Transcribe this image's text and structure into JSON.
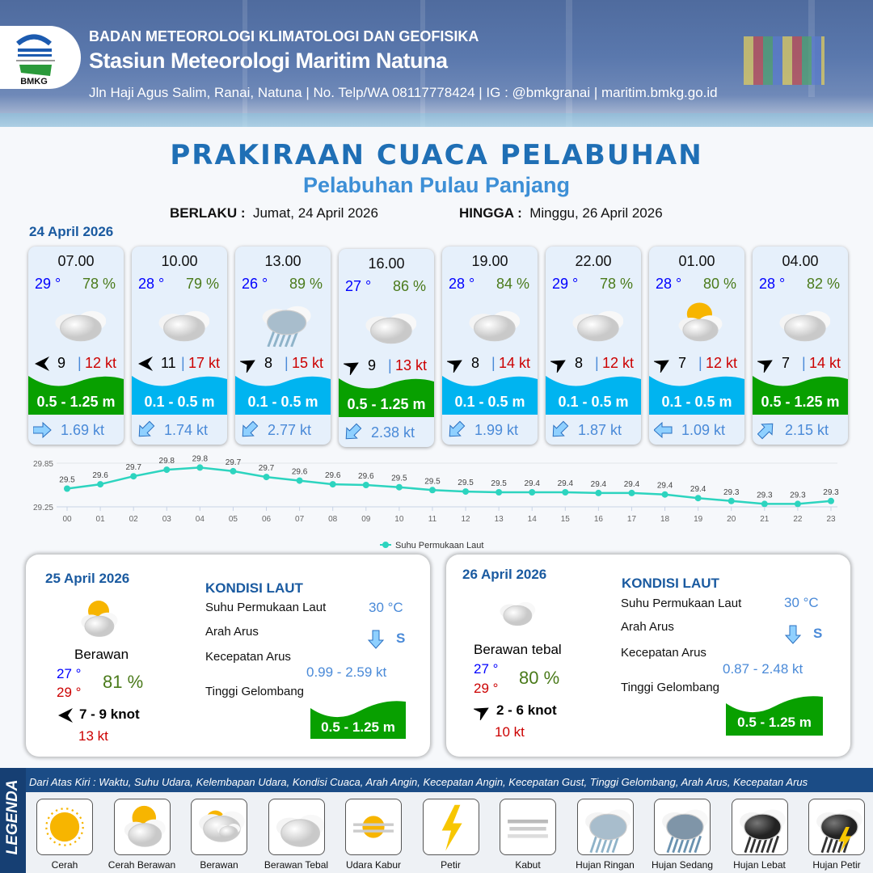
{
  "header": {
    "org": "BADAN METEOROLOGI KLIMATOLOGI DAN GEOFISIKA",
    "station": "Stasiun Meteorologi Maritim Natuna",
    "contact": "Jln Haji Agus Salim, Ranai, Natuna  | No. Telp/WA 08117778424 | IG : @bmkgranai | maritim.bmkg.go.id",
    "logo_text": "BMKG"
  },
  "title": "PRAKIRAAN CUACA PELABUHAN",
  "subtitle": "Pelabuhan Pulau Panjang",
  "validity": {
    "from_label": "BERLAKU :",
    "from": "Jumat, 24 April 2026",
    "to_label": "HINGGA :",
    "to": "Minggu, 26 April 2026"
  },
  "day1": {
    "date": "24 April 2026",
    "cards": [
      {
        "time": "07.00",
        "temp": "29 °",
        "hum": "78 %",
        "icon": "berawan-tebal",
        "wind_dir_deg": 270,
        "wind": "9",
        "gust": "12 kt",
        "wave": "0.5 - 1.25 m",
        "wave_color": "#08a000",
        "cur_dir_deg": 90,
        "cur": "1.69 kt"
      },
      {
        "time": "10.00",
        "temp": "28 °",
        "hum": "79 %",
        "icon": "berawan-tebal",
        "wind_dir_deg": 270,
        "wind": "11",
        "gust": "17 kt",
        "wave": "0.1 - 0.5 m",
        "wave_color": "#00b4f0",
        "cur_dir_deg": 225,
        "cur": "1.74 kt"
      },
      {
        "time": "13.00",
        "temp": "26 °",
        "hum": "89 %",
        "icon": "hujan-ringan",
        "wind_dir_deg": 60,
        "wind": "8",
        "gust": "15 kt",
        "wave": "0.1 - 0.5 m",
        "wave_color": "#00b4f0",
        "cur_dir_deg": 225,
        "cur": "2.77 kt"
      },
      {
        "time": "16.00",
        "temp": "27 °",
        "hum": "86 %",
        "icon": "berawan-tebal",
        "wind_dir_deg": 60,
        "wind": "9",
        "gust": "13 kt",
        "wave": "0.5 - 1.25 m",
        "wave_color": "#08a000",
        "cur_dir_deg": 225,
        "cur": "2.38 kt"
      },
      {
        "time": "19.00",
        "temp": "28 °",
        "hum": "84 %",
        "icon": "berawan-tebal",
        "wind_dir_deg": 60,
        "wind": "8",
        "gust": "14 kt",
        "wave": "0.1 - 0.5 m",
        "wave_color": "#00b4f0",
        "cur_dir_deg": 225,
        "cur": "1.99 kt"
      },
      {
        "time": "22.00",
        "temp": "29 °",
        "hum": "78 %",
        "icon": "berawan-tebal",
        "wind_dir_deg": 60,
        "wind": "8",
        "gust": "12 kt",
        "wave": "0.1 - 0.5 m",
        "wave_color": "#00b4f0",
        "cur_dir_deg": 225,
        "cur": "1.87 kt"
      },
      {
        "time": "01.00",
        "temp": "28 °",
        "hum": "80 %",
        "icon": "cerah-berawan",
        "wind_dir_deg": 60,
        "wind": "7",
        "gust": "12 kt",
        "wave": "0.1 - 0.5 m",
        "wave_color": "#00b4f0",
        "cur_dir_deg": 270,
        "cur": "1.09 kt"
      },
      {
        "time": "04.00",
        "temp": "28 °",
        "hum": "82 %",
        "icon": "berawan-tebal",
        "wind_dir_deg": 60,
        "wind": "7",
        "gust": "14 kt",
        "wave": "0.5 - 1.25 m",
        "wave_color": "#08a000",
        "cur_dir_deg": 45,
        "cur": "2.15 kt"
      }
    ]
  },
  "chart_data": {
    "type": "line",
    "x": [
      "00",
      "01",
      "02",
      "03",
      "04",
      "05",
      "06",
      "07",
      "08",
      "09",
      "10",
      "11",
      "12",
      "13",
      "14",
      "15",
      "16",
      "17",
      "18",
      "19",
      "20",
      "21",
      "22",
      "23"
    ],
    "series": [
      {
        "name": "Suhu Permukaan Laut",
        "values": [
          29.5,
          29.56,
          29.67,
          29.76,
          29.79,
          29.74,
          29.66,
          29.61,
          29.56,
          29.55,
          29.52,
          29.48,
          29.46,
          29.45,
          29.45,
          29.45,
          29.44,
          29.44,
          29.42,
          29.37,
          29.33,
          29.29,
          29.29,
          29.33
        ],
        "labels": [
          "29.5",
          "29.6",
          "29.7",
          "29.8",
          "29.8",
          "29.7",
          "29.7",
          "29.6",
          "29.6",
          "29.6",
          "29.5",
          "29.5",
          "29.5",
          "29.5",
          "29.4",
          "29.4",
          "29.4",
          "29.4",
          "29.4",
          "29.4",
          "29.3",
          "29.3",
          "29.3",
          "29.3"
        ],
        "color": "#2dd4bf"
      }
    ],
    "yticks": [
      "29.85",
      "29.25"
    ],
    "ylim": [
      29.25,
      29.85
    ],
    "grid": true,
    "legend": "bottom"
  },
  "day2": {
    "date": "25 April 2026",
    "condition": "Berawan",
    "icon": "cerah-berawan",
    "tmin": "27 °",
    "tmax": "29 °",
    "hum": "81 %",
    "wind_dir_deg": 270,
    "wind": "7  - 9 knot",
    "gust": "13 kt",
    "sea_title": "KONDISI LAUT",
    "sst_label": "Suhu Permukaan Laut",
    "sst": "30 °C",
    "cur_dir_label": "Arah Arus",
    "cur_dir": "S",
    "cur_dir_deg": 180,
    "cur_speed_label": "Kecepatan Arus",
    "cur_speed": "0.99  - 2.59 kt",
    "wave_label": "Tinggi Gelombang",
    "wave": "0.5 - 1.25 m"
  },
  "day3": {
    "date": "26 April 2026",
    "condition": "Berawan tebal",
    "icon": "berawan-tebal",
    "tmin": "27 °",
    "tmax": "29 °",
    "hum": "80 %",
    "wind_dir_deg": 60,
    "wind": "2  - 6 knot",
    "gust": "10 kt",
    "sea_title": "KONDISI LAUT",
    "sst_label": "Suhu Permukaan Laut",
    "sst": "30 °C",
    "cur_dir_label": "Arah Arus",
    "cur_dir": "S",
    "cur_dir_deg": 180,
    "cur_speed_label": "Kecepatan Arus",
    "cur_speed": "0.87  - 2.48 kt",
    "wave_label": "Tinggi Gelombang",
    "wave": "0.5 - 1.25 m"
  },
  "legend": {
    "title": "LEGENDA",
    "description": "Dari Atas Kiri : Waktu, Suhu Udara, Kelembapan Udara, Kondisi Cuaca, Arah Angin, Kecepatan Angin, Kecepatan Gust, Tinggi Gelombang, Arah Arus, Kecepatan Arus",
    "items": [
      {
        "label": "Cerah",
        "icon": "cerah"
      },
      {
        "label": "Cerah Berawan",
        "icon": "cerah-berawan"
      },
      {
        "label": "Berawan",
        "icon": "berawan"
      },
      {
        "label": "Berawan Tebal",
        "icon": "berawan-tebal"
      },
      {
        "label": "Udara Kabur",
        "icon": "udara-kabur"
      },
      {
        "label": "Petir",
        "icon": "petir"
      },
      {
        "label": "Kabut",
        "icon": "kabut"
      },
      {
        "label": "Hujan Ringan",
        "icon": "hujan-ringan"
      },
      {
        "label": "Hujan Sedang",
        "icon": "hujan-sedang"
      },
      {
        "label": "Hujan Lebat",
        "icon": "hujan-lebat"
      },
      {
        "label": "Hujan Petir",
        "icon": "hujan-petir"
      }
    ]
  }
}
